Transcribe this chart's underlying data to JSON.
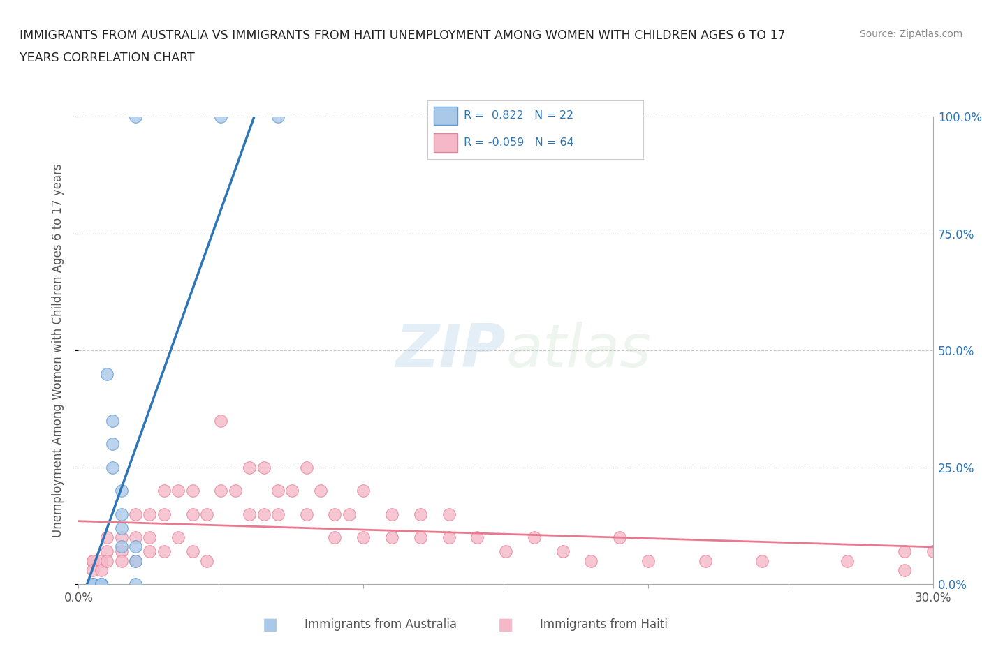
{
  "title_line1": "IMMIGRANTS FROM AUSTRALIA VS IMMIGRANTS FROM HAITI UNEMPLOYMENT AMONG WOMEN WITH CHILDREN AGES 6 TO 17",
  "title_line2": "YEARS CORRELATION CHART",
  "source": "Source: ZipAtlas.com",
  "ylabel": "Unemployment Among Women with Children Ages 6 to 17 years",
  "xlim": [
    0.0,
    0.3
  ],
  "ylim": [
    0.0,
    1.0
  ],
  "xticks": [
    0.0,
    0.05,
    0.1,
    0.15,
    0.2,
    0.25,
    0.3
  ],
  "xticklabels": [
    "0.0%",
    "",
    "",
    "",
    "",
    "",
    "30.0%"
  ],
  "yticks": [
    0.0,
    0.25,
    0.5,
    0.75,
    1.0
  ],
  "yticklabels_right": [
    "0.0%",
    "25.0%",
    "50.0%",
    "75.0%",
    "100.0%"
  ],
  "australia_color": "#aac9e8",
  "australia_edge": "#5b9bd5",
  "haiti_color": "#f5b8c8",
  "haiti_edge": "#e8829a",
  "trend_australia_color": "#2e75b6",
  "trend_haiti_color": "#e87a90",
  "watermark_zip": "ZIP",
  "watermark_atlas": "atlas",
  "background_color": "#ffffff",
  "grid_color": "#c8c8c8",
  "australia_x": [
    0.02,
    0.05,
    0.07,
    0.005,
    0.005,
    0.005,
    0.008,
    0.008,
    0.008,
    0.008,
    0.008,
    0.01,
    0.012,
    0.012,
    0.012,
    0.015,
    0.015,
    0.015,
    0.015,
    0.02,
    0.02,
    0.02
  ],
  "australia_y": [
    1.0,
    1.0,
    1.0,
    0.0,
    0.0,
    0.0,
    0.0,
    0.0,
    0.0,
    0.0,
    0.0,
    0.45,
    0.35,
    0.3,
    0.25,
    0.2,
    0.15,
    0.12,
    0.08,
    0.08,
    0.05,
    0.0
  ],
  "haiti_x": [
    0.005,
    0.005,
    0.005,
    0.008,
    0.008,
    0.01,
    0.01,
    0.01,
    0.015,
    0.015,
    0.015,
    0.02,
    0.02,
    0.02,
    0.025,
    0.025,
    0.025,
    0.03,
    0.03,
    0.03,
    0.035,
    0.035,
    0.04,
    0.04,
    0.04,
    0.045,
    0.045,
    0.05,
    0.05,
    0.055,
    0.06,
    0.06,
    0.065,
    0.065,
    0.07,
    0.07,
    0.075,
    0.08,
    0.08,
    0.085,
    0.09,
    0.09,
    0.095,
    0.1,
    0.1,
    0.11,
    0.11,
    0.12,
    0.12,
    0.13,
    0.13,
    0.14,
    0.15,
    0.16,
    0.17,
    0.18,
    0.19,
    0.2,
    0.22,
    0.24,
    0.27,
    0.29,
    0.29,
    0.3
  ],
  "haiti_y": [
    0.05,
    0.05,
    0.03,
    0.05,
    0.03,
    0.1,
    0.07,
    0.05,
    0.1,
    0.07,
    0.05,
    0.15,
    0.1,
    0.05,
    0.15,
    0.1,
    0.07,
    0.2,
    0.15,
    0.07,
    0.2,
    0.1,
    0.2,
    0.15,
    0.07,
    0.15,
    0.05,
    0.35,
    0.2,
    0.2,
    0.25,
    0.15,
    0.25,
    0.15,
    0.2,
    0.15,
    0.2,
    0.25,
    0.15,
    0.2,
    0.15,
    0.1,
    0.15,
    0.2,
    0.1,
    0.15,
    0.1,
    0.15,
    0.1,
    0.15,
    0.1,
    0.1,
    0.07,
    0.1,
    0.07,
    0.05,
    0.1,
    0.05,
    0.05,
    0.05,
    0.05,
    0.07,
    0.03,
    0.07
  ],
  "legend_aus_r": "R =  0.822",
  "legend_aus_n": "N = 22",
  "legend_haiti_r": "R = -0.059",
  "legend_haiti_n": "N = 64",
  "legend_text_color": "#2e75b6",
  "bottom_label_aus": "Immigrants from Australia",
  "bottom_label_haiti": "Immigrants from Haiti"
}
